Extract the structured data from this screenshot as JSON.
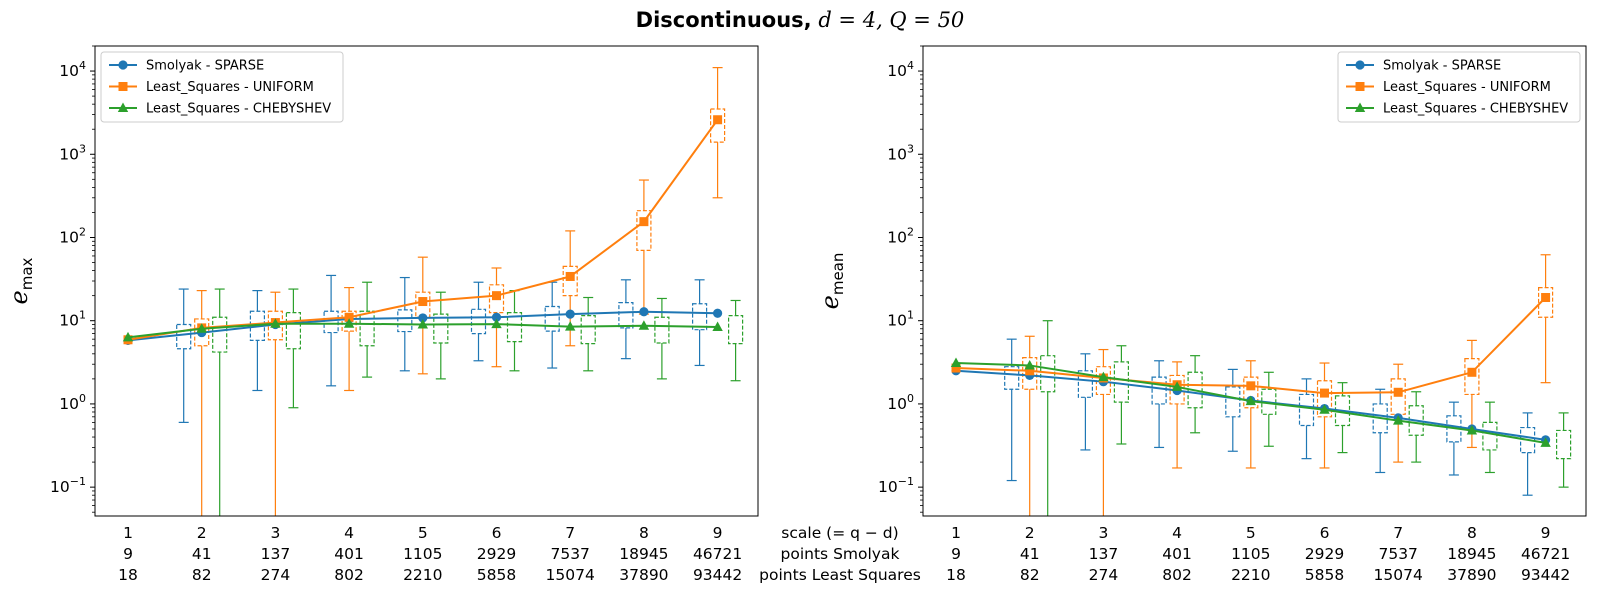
{
  "suptitle": {
    "bold_text": "Discontinuous,",
    "params": "d = 4, Q = 50"
  },
  "row_labels": {
    "scale": "scale (= q − d)",
    "points_smolyak": "points Smolyak",
    "points_ls": "points Least Squares"
  },
  "chart_data": [
    {
      "type": "line",
      "ylabel": "e_max",
      "y_scale": "log",
      "ylim": [
        0.045,
        20000
      ],
      "y_ticks": [
        "10^-1",
        "10^0",
        "10^1",
        "10^2",
        "10^3",
        "10^4"
      ],
      "categories": {
        "scale": [
          "1",
          "2",
          "3",
          "4",
          "5",
          "6",
          "7",
          "8",
          "9"
        ],
        "points_smolyak": [
          "9",
          "41",
          "137",
          "401",
          "1105",
          "2929",
          "7537",
          "18945",
          "46721"
        ],
        "points_ls": [
          "18",
          "82",
          "274",
          "802",
          "2210",
          "5858",
          "15074",
          "37890",
          "93442"
        ]
      },
      "legend_position": "top-left",
      "series": [
        {
          "name": "Smolyak - SPARSE",
          "color": "#1f77b4",
          "marker": "circle",
          "values": [
            5.8,
            7.2,
            9.0,
            10.5,
            10.8,
            11.0,
            12.0,
            12.8,
            12.3
          ],
          "box_q1": [
            null,
            4.6,
            5.8,
            7.2,
            7.4,
            7.0,
            7.5,
            8.2,
            7.8
          ],
          "box_q3": [
            null,
            9.0,
            13.0,
            13.0,
            13.5,
            13.7,
            14.8,
            16.5,
            16.0
          ],
          "whisker_low": [
            null,
            0.6,
            1.45,
            1.65,
            2.5,
            3.3,
            2.7,
            3.5,
            2.9
          ],
          "whisker_high": [
            null,
            24.0,
            23.0,
            35.0,
            33.0,
            29.0,
            29.0,
            31.0,
            31.0
          ]
        },
        {
          "name": "Least_Squares - UNIFORM",
          "color": "#ff7f0e",
          "marker": "square",
          "values": [
            5.9,
            8.2,
            9.5,
            11.0,
            17.0,
            20.0,
            34.0,
            155.0,
            2600.0
          ],
          "box_q1": [
            null,
            5.0,
            5.9,
            7.5,
            11.0,
            12.5,
            20.0,
            70.0,
            1400.0
          ],
          "box_q3": [
            null,
            10.5,
            13.0,
            13.0,
            22.0,
            27.0,
            45.0,
            210.0,
            3500.0
          ],
          "whisker_low": [
            null,
            0.01,
            0.01,
            1.45,
            2.3,
            2.8,
            5.0,
            12.0,
            300.0
          ],
          "whisker_high": [
            null,
            23.0,
            22.0,
            25.0,
            58.0,
            43.0,
            120.0,
            490.0,
            11000.0
          ]
        },
        {
          "name": "Least_Squares - CHEBYSHEV",
          "color": "#2ca02c",
          "marker": "triangle",
          "values": [
            6.3,
            8.0,
            9.2,
            9.2,
            9.0,
            9.1,
            8.5,
            8.7,
            8.4
          ],
          "box_q1": [
            null,
            4.2,
            4.6,
            5.0,
            5.4,
            5.6,
            5.3,
            5.4,
            5.3
          ],
          "box_q3": [
            null,
            11.0,
            12.5,
            13.0,
            12.0,
            12.5,
            11.5,
            11.0,
            11.5
          ],
          "whisker_low": [
            null,
            0.01,
            0.9,
            2.1,
            2.0,
            2.5,
            2.5,
            2.0,
            1.9
          ],
          "whisker_high": [
            null,
            24.0,
            24.0,
            29.0,
            22.0,
            23.0,
            19.0,
            18.5,
            17.5
          ]
        }
      ]
    },
    {
      "type": "line",
      "ylabel": "e_mean",
      "y_scale": "log",
      "ylim": [
        0.045,
        20000
      ],
      "y_ticks": [
        "10^-1",
        "10^0",
        "10^1",
        "10^2",
        "10^3",
        "10^4"
      ],
      "categories": {
        "scale": [
          "1",
          "2",
          "3",
          "4",
          "5",
          "6",
          "7",
          "8",
          "9"
        ],
        "points_smolyak": [
          "9",
          "41",
          "137",
          "401",
          "1105",
          "2929",
          "7537",
          "18945",
          "46721"
        ],
        "points_ls": [
          "18",
          "82",
          "274",
          "802",
          "2210",
          "5858",
          "15074",
          "37890",
          "93442"
        ]
      },
      "legend_position": "top-right",
      "series": [
        {
          "name": "Smolyak - SPARSE",
          "color": "#1f77b4",
          "marker": "circle",
          "values": [
            2.5,
            2.2,
            1.85,
            1.45,
            1.1,
            0.88,
            0.68,
            0.5,
            0.37
          ],
          "box_q1": [
            null,
            1.5,
            1.2,
            1.0,
            0.7,
            0.55,
            0.45,
            0.35,
            0.26
          ],
          "box_q3": [
            null,
            2.8,
            2.5,
            2.1,
            1.6,
            1.3,
            1.0,
            0.72,
            0.52
          ],
          "whisker_low": [
            null,
            0.12,
            0.28,
            0.3,
            0.27,
            0.22,
            0.15,
            0.14,
            0.08
          ],
          "whisker_high": [
            null,
            6.0,
            4.0,
            3.3,
            2.6,
            2.0,
            1.5,
            1.05,
            0.78
          ]
        },
        {
          "name": "Least_Squares - UNIFORM",
          "color": "#ff7f0e",
          "marker": "square",
          "values": [
            2.7,
            2.5,
            2.05,
            1.7,
            1.65,
            1.35,
            1.38,
            2.4,
            19.0
          ],
          "box_q1": [
            null,
            1.5,
            1.3,
            1.0,
            0.9,
            0.7,
            0.75,
            1.3,
            11.0
          ],
          "box_q3": [
            null,
            3.6,
            2.8,
            2.2,
            2.1,
            1.9,
            2.0,
            3.5,
            25.0
          ],
          "whisker_low": [
            null,
            0.01,
            0.01,
            0.17,
            0.17,
            0.17,
            0.2,
            0.3,
            1.8
          ],
          "whisker_high": [
            null,
            6.5,
            4.5,
            3.2,
            3.3,
            3.1,
            3.0,
            5.8,
            62.0
          ]
        },
        {
          "name": "Least_Squares - CHEBYSHEV",
          "color": "#2ca02c",
          "marker": "triangle",
          "values": [
            3.1,
            2.9,
            2.1,
            1.6,
            1.08,
            0.85,
            0.63,
            0.48,
            0.34
          ],
          "box_q1": [
            null,
            1.4,
            1.05,
            0.9,
            0.75,
            0.55,
            0.42,
            0.28,
            0.22
          ],
          "box_q3": [
            null,
            3.8,
            3.2,
            2.4,
            1.5,
            1.25,
            0.95,
            0.6,
            0.48
          ],
          "whisker_low": [
            null,
            0.01,
            0.33,
            0.45,
            0.31,
            0.26,
            0.2,
            0.15,
            0.1
          ],
          "whisker_high": [
            null,
            10.0,
            5.0,
            3.8,
            2.4,
            1.8,
            1.4,
            1.05,
            0.78
          ]
        }
      ]
    }
  ]
}
